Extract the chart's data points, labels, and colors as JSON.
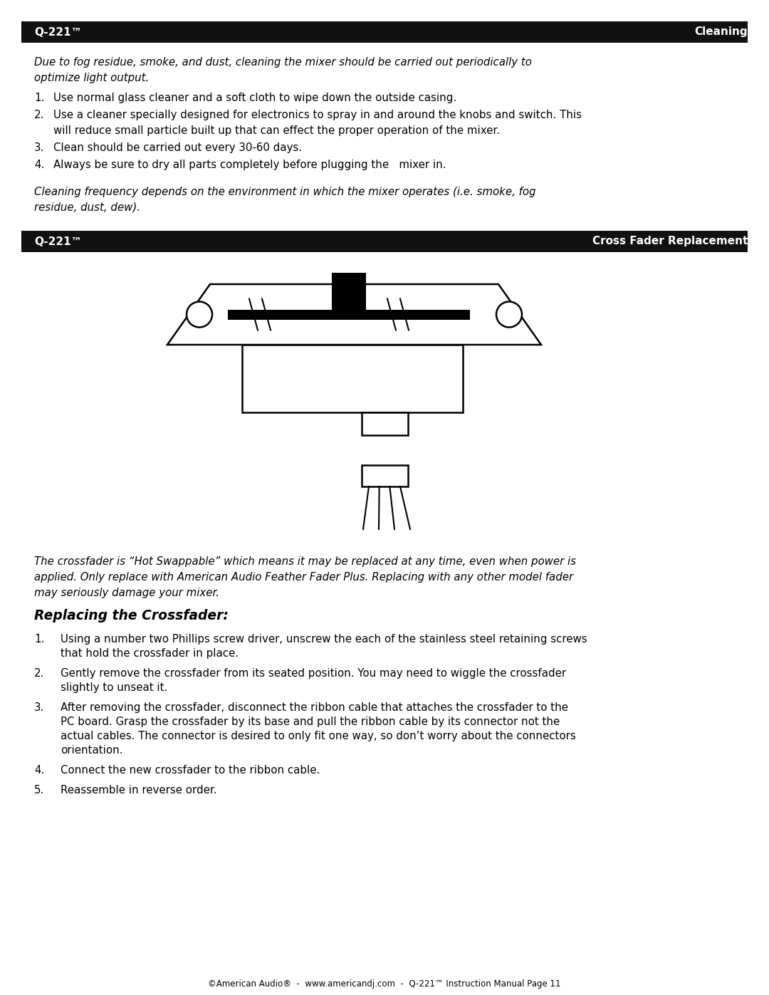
{
  "page_bg": "#ffffff",
  "header_bg": "#111111",
  "header1_left": "Q-221™",
  "header1_right": "Cleaning",
  "header2_left": "Q-221™",
  "header2_right": "Cross Fader Replacement",
  "cleaning_italic_intro_line1": "Due to fog residue, smoke, and dust, cleaning the mixer should be carried out periodically to",
  "cleaning_italic_intro_line2": "optimize light output.",
  "cleaning_items": [
    "Use normal glass cleaner and a soft cloth to wipe down the outside casing.",
    "Use a cleaner specially designed for electronics to spray in and around the knobs and switch. This",
    "will reduce small particle built up that can effect the proper operation of the mixer.",
    "Clean should be carried out every 30-60 days.",
    "Always be sure to dry all parts completely before plugging the   mixer in."
  ],
  "cleaning_footer_line1": "Cleaning frequency depends on the environment in which the mixer operates (i.e. smoke, fog",
  "cleaning_footer_line2": "residue, dust, dew).",
  "crossfader_intro_line1": "The crossfader is “Hot Swappable” which means it may be replaced at any time, even when power is",
  "crossfader_intro_line2": "applied. Only replace with American Audio Feather Fader Plus. Replacing with any other model fader",
  "crossfader_intro_line3": "may seriously damage your mixer.",
  "replacing_title": "Replacing the Crossfader:",
  "replacing_items": [
    [
      "Using a number two Phillips screw driver, unscrew the each of the stainless steel retaining screws",
      "that hold the crossfader in place."
    ],
    [
      "Gently remove the crossfader from its seated position. You may need to wiggle the crossfader",
      "slightly to unseat it."
    ],
    [
      "After removing the crossfader, disconnect the ribbon cable that attaches the crossfader to the",
      "PC board. Grasp the crossfader by its base and pull the ribbon cable by its connector not the",
      "actual cables. The connector is desired to only fit one way, so don’t worry about the connectors",
      "orientation."
    ],
    [
      "Connect the new crossfader to the ribbon cable."
    ],
    [
      "Reassemble in reverse order."
    ]
  ],
  "footer_text": "©American Audio®  -  www.americandj.com  -  Q-221™ Instruction Manual Page 11"
}
